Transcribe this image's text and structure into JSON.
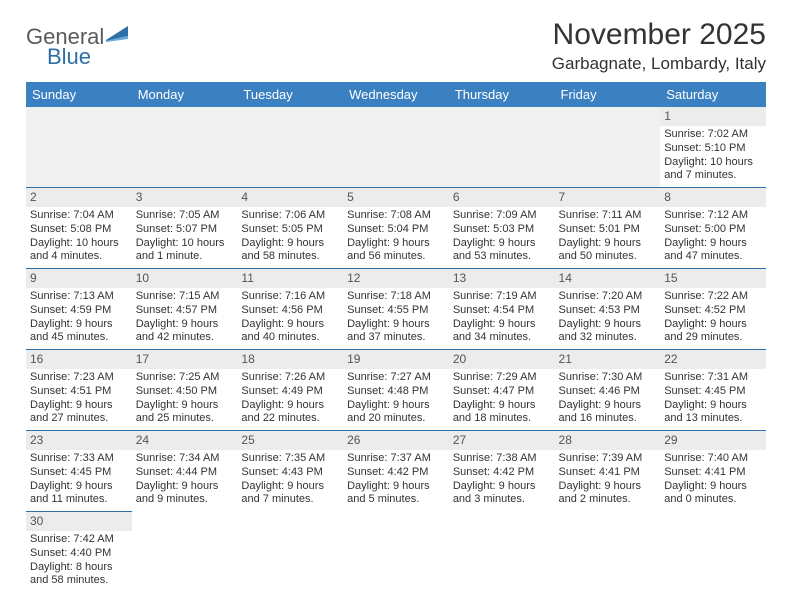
{
  "logo": {
    "text1": "General",
    "text2": "Blue"
  },
  "title": "November 2025",
  "location": "Garbagnate, Lombardy, Italy",
  "colors": {
    "header_bg": "#3b81c2",
    "header_text": "#ffffff",
    "daynum_bg": "#ececec",
    "border": "#2f6fa8",
    "logo_gray": "#5a5a5a",
    "logo_blue": "#2f6fa8"
  },
  "weekdays": [
    "Sunday",
    "Monday",
    "Tuesday",
    "Wednesday",
    "Thursday",
    "Friday",
    "Saturday"
  ],
  "weeks": [
    [
      null,
      null,
      null,
      null,
      null,
      null,
      {
        "n": "1",
        "sr": "Sunrise: 7:02 AM",
        "ss": "Sunset: 5:10 PM",
        "d1": "Daylight: 10 hours",
        "d2": "and 7 minutes."
      }
    ],
    [
      {
        "n": "2",
        "sr": "Sunrise: 7:04 AM",
        "ss": "Sunset: 5:08 PM",
        "d1": "Daylight: 10 hours",
        "d2": "and 4 minutes."
      },
      {
        "n": "3",
        "sr": "Sunrise: 7:05 AM",
        "ss": "Sunset: 5:07 PM",
        "d1": "Daylight: 10 hours",
        "d2": "and 1 minute."
      },
      {
        "n": "4",
        "sr": "Sunrise: 7:06 AM",
        "ss": "Sunset: 5:05 PM",
        "d1": "Daylight: 9 hours",
        "d2": "and 58 minutes."
      },
      {
        "n": "5",
        "sr": "Sunrise: 7:08 AM",
        "ss": "Sunset: 5:04 PM",
        "d1": "Daylight: 9 hours",
        "d2": "and 56 minutes."
      },
      {
        "n": "6",
        "sr": "Sunrise: 7:09 AM",
        "ss": "Sunset: 5:03 PM",
        "d1": "Daylight: 9 hours",
        "d2": "and 53 minutes."
      },
      {
        "n": "7",
        "sr": "Sunrise: 7:11 AM",
        "ss": "Sunset: 5:01 PM",
        "d1": "Daylight: 9 hours",
        "d2": "and 50 minutes."
      },
      {
        "n": "8",
        "sr": "Sunrise: 7:12 AM",
        "ss": "Sunset: 5:00 PM",
        "d1": "Daylight: 9 hours",
        "d2": "and 47 minutes."
      }
    ],
    [
      {
        "n": "9",
        "sr": "Sunrise: 7:13 AM",
        "ss": "Sunset: 4:59 PM",
        "d1": "Daylight: 9 hours",
        "d2": "and 45 minutes."
      },
      {
        "n": "10",
        "sr": "Sunrise: 7:15 AM",
        "ss": "Sunset: 4:57 PM",
        "d1": "Daylight: 9 hours",
        "d2": "and 42 minutes."
      },
      {
        "n": "11",
        "sr": "Sunrise: 7:16 AM",
        "ss": "Sunset: 4:56 PM",
        "d1": "Daylight: 9 hours",
        "d2": "and 40 minutes."
      },
      {
        "n": "12",
        "sr": "Sunrise: 7:18 AM",
        "ss": "Sunset: 4:55 PM",
        "d1": "Daylight: 9 hours",
        "d2": "and 37 minutes."
      },
      {
        "n": "13",
        "sr": "Sunrise: 7:19 AM",
        "ss": "Sunset: 4:54 PM",
        "d1": "Daylight: 9 hours",
        "d2": "and 34 minutes."
      },
      {
        "n": "14",
        "sr": "Sunrise: 7:20 AM",
        "ss": "Sunset: 4:53 PM",
        "d1": "Daylight: 9 hours",
        "d2": "and 32 minutes."
      },
      {
        "n": "15",
        "sr": "Sunrise: 7:22 AM",
        "ss": "Sunset: 4:52 PM",
        "d1": "Daylight: 9 hours",
        "d2": "and 29 minutes."
      }
    ],
    [
      {
        "n": "16",
        "sr": "Sunrise: 7:23 AM",
        "ss": "Sunset: 4:51 PM",
        "d1": "Daylight: 9 hours",
        "d2": "and 27 minutes."
      },
      {
        "n": "17",
        "sr": "Sunrise: 7:25 AM",
        "ss": "Sunset: 4:50 PM",
        "d1": "Daylight: 9 hours",
        "d2": "and 25 minutes."
      },
      {
        "n": "18",
        "sr": "Sunrise: 7:26 AM",
        "ss": "Sunset: 4:49 PM",
        "d1": "Daylight: 9 hours",
        "d2": "and 22 minutes."
      },
      {
        "n": "19",
        "sr": "Sunrise: 7:27 AM",
        "ss": "Sunset: 4:48 PM",
        "d1": "Daylight: 9 hours",
        "d2": "and 20 minutes."
      },
      {
        "n": "20",
        "sr": "Sunrise: 7:29 AM",
        "ss": "Sunset: 4:47 PM",
        "d1": "Daylight: 9 hours",
        "d2": "and 18 minutes."
      },
      {
        "n": "21",
        "sr": "Sunrise: 7:30 AM",
        "ss": "Sunset: 4:46 PM",
        "d1": "Daylight: 9 hours",
        "d2": "and 16 minutes."
      },
      {
        "n": "22",
        "sr": "Sunrise: 7:31 AM",
        "ss": "Sunset: 4:45 PM",
        "d1": "Daylight: 9 hours",
        "d2": "and 13 minutes."
      }
    ],
    [
      {
        "n": "23",
        "sr": "Sunrise: 7:33 AM",
        "ss": "Sunset: 4:45 PM",
        "d1": "Daylight: 9 hours",
        "d2": "and 11 minutes."
      },
      {
        "n": "24",
        "sr": "Sunrise: 7:34 AM",
        "ss": "Sunset: 4:44 PM",
        "d1": "Daylight: 9 hours",
        "d2": "and 9 minutes."
      },
      {
        "n": "25",
        "sr": "Sunrise: 7:35 AM",
        "ss": "Sunset: 4:43 PM",
        "d1": "Daylight: 9 hours",
        "d2": "and 7 minutes."
      },
      {
        "n": "26",
        "sr": "Sunrise: 7:37 AM",
        "ss": "Sunset: 4:42 PM",
        "d1": "Daylight: 9 hours",
        "d2": "and 5 minutes."
      },
      {
        "n": "27",
        "sr": "Sunrise: 7:38 AM",
        "ss": "Sunset: 4:42 PM",
        "d1": "Daylight: 9 hours",
        "d2": "and 3 minutes."
      },
      {
        "n": "28",
        "sr": "Sunrise: 7:39 AM",
        "ss": "Sunset: 4:41 PM",
        "d1": "Daylight: 9 hours",
        "d2": "and 2 minutes."
      },
      {
        "n": "29",
        "sr": "Sunrise: 7:40 AM",
        "ss": "Sunset: 4:41 PM",
        "d1": "Daylight: 9 hours",
        "d2": "and 0 minutes."
      }
    ],
    [
      {
        "n": "30",
        "sr": "Sunrise: 7:42 AM",
        "ss": "Sunset: 4:40 PM",
        "d1": "Daylight: 8 hours",
        "d2": "and 58 minutes."
      },
      null,
      null,
      null,
      null,
      null,
      null
    ]
  ]
}
